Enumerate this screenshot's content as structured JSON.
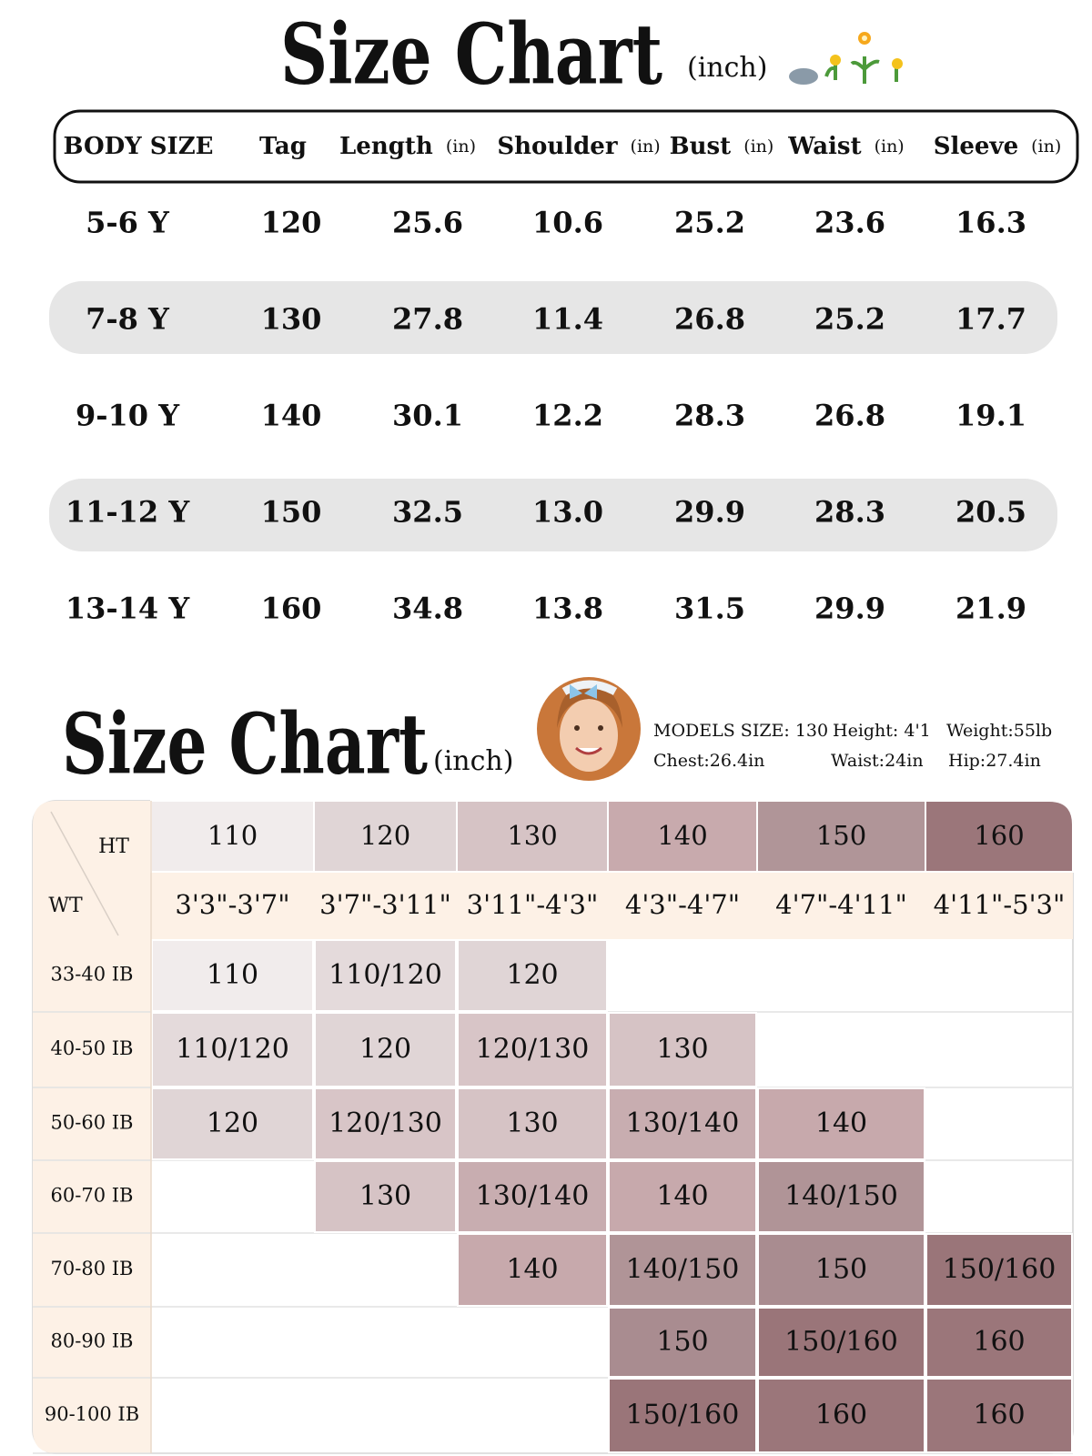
{
  "header": {
    "title": "Size Chart",
    "unit": "(inch)"
  },
  "table": {
    "columns": [
      {
        "name": "BODY SIZE"
      },
      {
        "name": "Tag"
      },
      {
        "name": "Length",
        "unit": "(in)"
      },
      {
        "name": "Shoulder",
        "unit": "(in)"
      },
      {
        "name": "Bust",
        "unit": "(in)"
      },
      {
        "name": "Waist",
        "unit": "(in)"
      },
      {
        "name": "Sleeve",
        "unit": "(in)"
      }
    ],
    "rows": [
      [
        "5-6 Y",
        "120",
        "25.6",
        "10.6",
        "25.2",
        "23.6",
        "16.3"
      ],
      [
        "7-8 Y",
        "130",
        "27.8",
        "11.4",
        "26.8",
        "25.2",
        "17.7"
      ],
      [
        "9-10 Y",
        "140",
        "30.1",
        "12.2",
        "28.3",
        "26.8",
        "19.1"
      ],
      [
        "11-12 Y",
        "150",
        "32.5",
        "13.0",
        "29.9",
        "28.3",
        "20.5"
      ],
      [
        "13-14 Y",
        "160",
        "34.8",
        "13.8",
        "31.5",
        "29.9",
        "21.9"
      ]
    ]
  },
  "model": {
    "title": "Size Chart",
    "unit": "(inch)",
    "details": [
      "MODELS  SIZE: 130",
      "Height: 4'1",
      "Weight:55lb",
      "Chest:26.4in",
      "Waist:24in",
      "Hip:27.4in"
    ]
  },
  "grid": {
    "corner": {
      "height": "HT",
      "weight": "WT"
    },
    "columns": [
      {
        "tag": "110",
        "range": "3'3\"-3'7\"",
        "color": "#f1ecec"
      },
      {
        "tag": "120",
        "range": "3'7\"-3'11\"",
        "color": "#e0d5d6"
      },
      {
        "tag": "130",
        "range": "3'11\"-4'3\"",
        "color": "#d6c3c5"
      },
      {
        "tag": "140",
        "range": "4'3\"-4'7\"",
        "color": "#c8aaad"
      },
      {
        "tag": "150",
        "range": "4'7\"-4'11\"",
        "color": "#b09598"
      },
      {
        "tag": "160",
        "range": "4'11\"-5'3\"",
        "color": "#9b767a"
      }
    ],
    "rows": [
      {
        "weight": "33-40 IB",
        "cells": [
          "110",
          "110/120",
          "120",
          null,
          null,
          null
        ]
      },
      {
        "weight": "40-50 IB",
        "cells": [
          "110/120",
          "120",
          "120/130",
          "130",
          null,
          null
        ]
      },
      {
        "weight": "50-60 IB",
        "cells": [
          "120",
          "120/130",
          "130",
          "130/140",
          "140",
          null
        ]
      },
      {
        "weight": "60-70 IB",
        "cells": [
          null,
          "130",
          "130/140",
          "140",
          "140/150",
          null
        ]
      },
      {
        "weight": "70-80 IB",
        "cells": [
          null,
          null,
          "140",
          "140/150",
          "150",
          "150/160"
        ]
      },
      {
        "weight": "80-90 IB",
        "cells": [
          null,
          null,
          null,
          "150",
          "150/160",
          "160"
        ]
      },
      {
        "weight": "90-100 IB",
        "cells": [
          null,
          null,
          null,
          "150/160",
          "160",
          "160"
        ]
      }
    ],
    "cell_colors": {
      "110": "#f1ecec",
      "110/120": "#e4dadb",
      "120": "#e0d5d6",
      "120/130": "#d8c5c7",
      "130": "#d6c3c5",
      "130/140": "#c8adb0",
      "140": "#c7a9ac",
      "140/150": "#b09497",
      "150": "#a98c90",
      "150/160": "#9a7579",
      "160": "#9b767a"
    },
    "label_background": "#fdf1e6"
  }
}
